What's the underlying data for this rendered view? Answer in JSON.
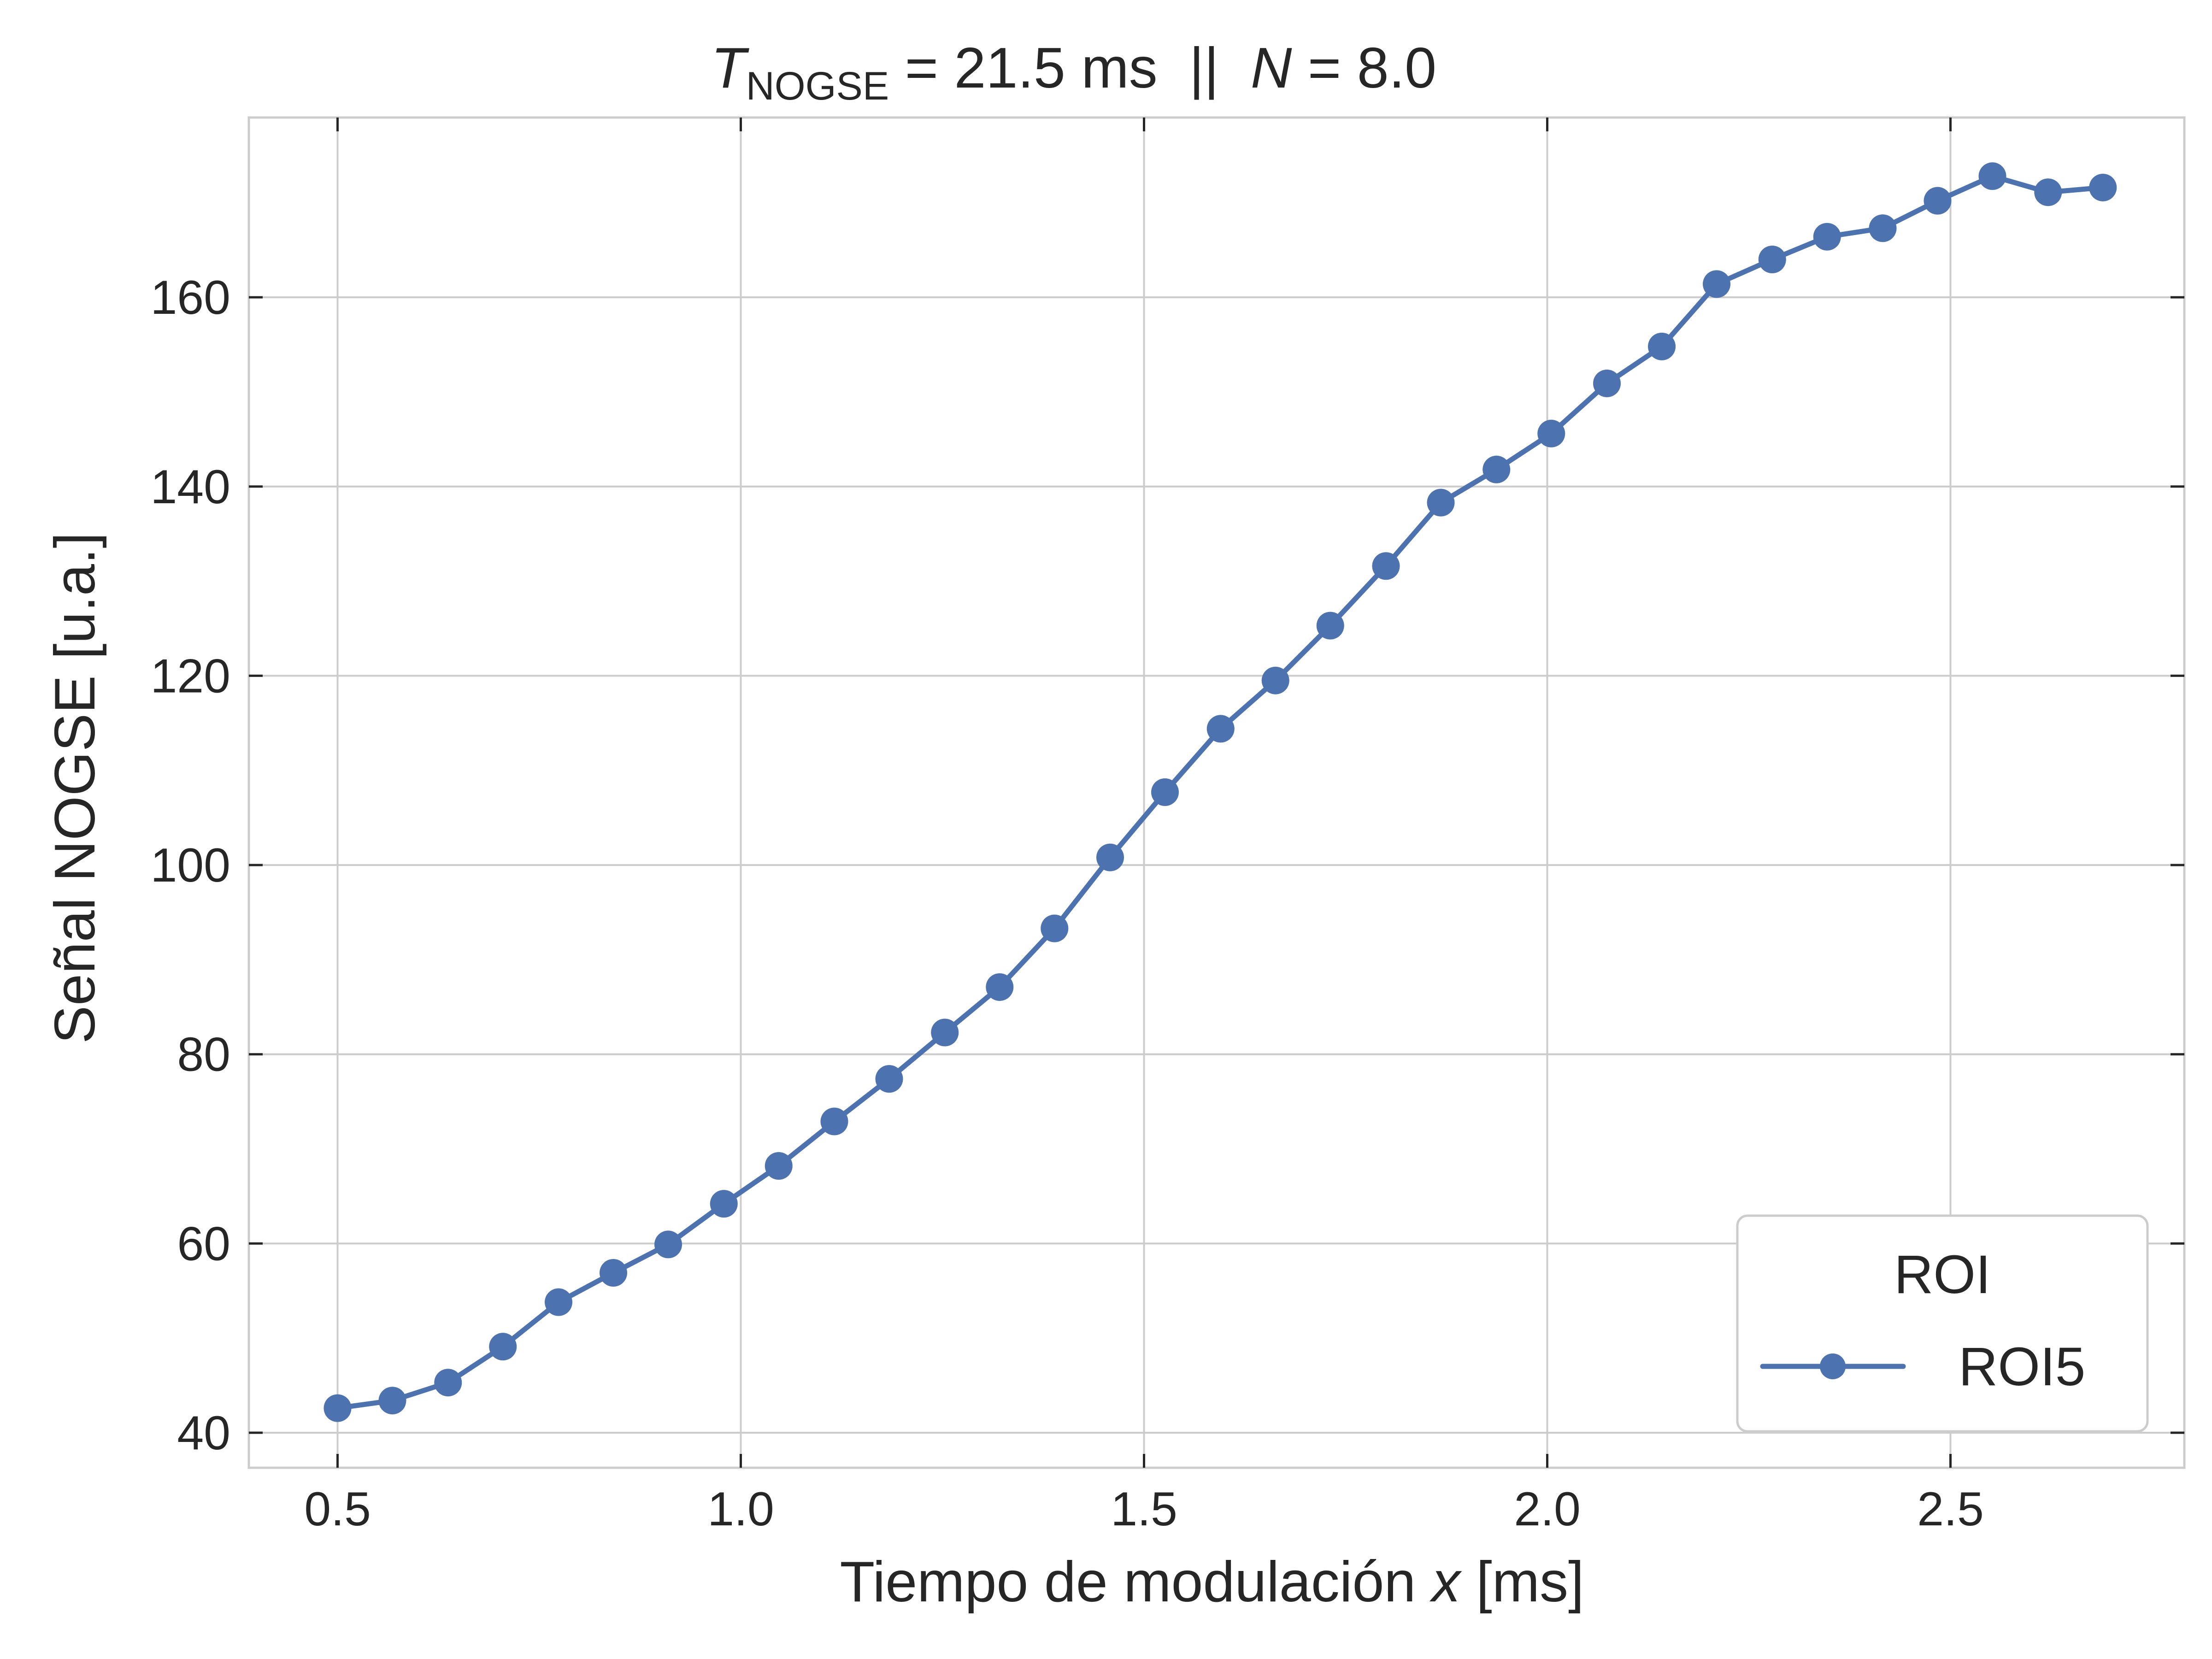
{
  "chart_data": {
    "type": "line",
    "title": {
      "t_symbol": "T",
      "t_subscript": "NOGSE",
      "t_value": " = 21.5 ms  ||  ",
      "n_symbol": "N",
      "n_value": " = 8.0"
    },
    "xlabel": {
      "prefix": "Tiempo de modulación ",
      "variable": "x",
      "suffix": " [ms]"
    },
    "ylabel": "Señal NOGSE [u.a.]",
    "xlim": [
      0.39,
      2.79
    ],
    "ylim": [
      36.3,
      179.0
    ],
    "xticks": [
      0.5,
      1.0,
      1.5,
      2.0,
      2.5
    ],
    "xtick_labels": [
      "0.5",
      "1.0",
      "1.5",
      "2.0",
      "2.5"
    ],
    "yticks": [
      40,
      60,
      80,
      100,
      120,
      140,
      160
    ],
    "ytick_labels": [
      "40",
      "60",
      "80",
      "100",
      "120",
      "140",
      "160"
    ],
    "grid": true,
    "legend": {
      "title": "ROI",
      "placement": "lower-right"
    },
    "series": [
      {
        "name": "ROI5",
        "color": "#4c72b0",
        "marker": "circle",
        "x": [
          0.5,
          0.568,
          0.637,
          0.705,
          0.774,
          0.842,
          0.91,
          0.979,
          1.047,
          1.116,
          1.184,
          1.253,
          1.321,
          1.389,
          1.458,
          1.526,
          1.595,
          1.663,
          1.731,
          1.8,
          1.868,
          1.937,
          2.005,
          2.074,
          2.142,
          2.21,
          2.279,
          2.347,
          2.416,
          2.484,
          2.552,
          2.621,
          2.689
        ],
        "y": [
          42.6,
          43.4,
          45.3,
          49.1,
          53.8,
          56.9,
          59.9,
          64.2,
          68.2,
          72.9,
          77.4,
          82.3,
          87.1,
          93.3,
          100.8,
          107.7,
          114.4,
          119.5,
          125.3,
          131.6,
          138.3,
          141.8,
          145.6,
          150.9,
          154.8,
          161.4,
          164.0,
          166.4,
          167.3,
          170.2,
          172.8,
          171.1,
          171.6
        ]
      }
    ]
  }
}
